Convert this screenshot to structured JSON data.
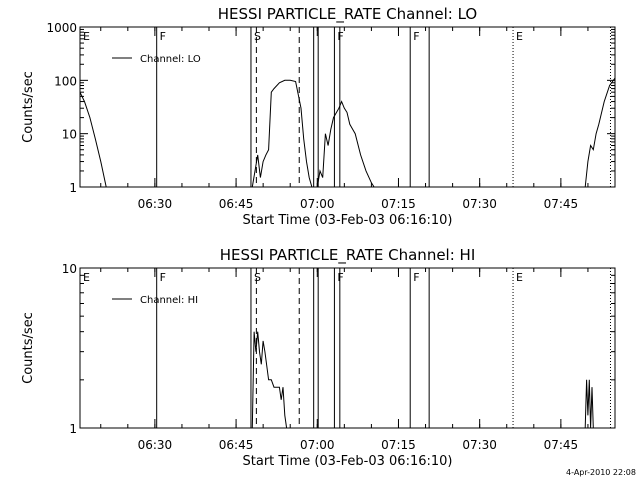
{
  "chart_data": [
    {
      "type": "line",
      "title": "HESSI PARTICLE_RATE Channel: LO",
      "xlabel": "Start Time (03-Feb-03 06:16:10)",
      "ylabel": "Counts/sec",
      "y_scale": "log",
      "ylim": [
        1,
        1000
      ],
      "xlim": [
        "06:16:10",
        "07:55:00"
      ],
      "x_tick_labels": [
        "06:30",
        "06:45",
        "07:00",
        "07:15",
        "07:30",
        "07:45"
      ],
      "y_tick_labels": [
        "1",
        "10",
        "100",
        "1000"
      ],
      "legend": {
        "placement": "top-left",
        "entries": [
          "Channel: LO"
        ]
      },
      "series": [
        {
          "name": "Channel: LO",
          "x": [
            "06:16:10",
            "06:17:00",
            "06:18:00",
            "06:19:00",
            "06:20:00",
            "06:21:00",
            "06:48:00",
            "06:48:30",
            "06:49:00",
            "06:49:30",
            "06:50:00",
            "06:50:30",
            "06:51:00",
            "06:51:30",
            "06:52:00",
            "06:53:00",
            "06:54:00",
            "06:55:00",
            "06:56:00",
            "06:57:00",
            "06:57:30",
            "06:58:00",
            "06:58:30",
            "06:59:00",
            "07:00:00",
            "07:00:30",
            "07:01:00",
            "07:01:30",
            "07:02:00",
            "07:02:30",
            "07:03:00",
            "07:04:00",
            "07:04:30",
            "07:05:00",
            "07:05:30",
            "07:06:00",
            "07:07:00",
            "07:08:00",
            "07:09:00",
            "07:10:00",
            "07:10:30",
            "07:49:30",
            "07:50:00",
            "07:50:30",
            "07:51:00",
            "07:51:30",
            "07:52:00",
            "07:53:00",
            "07:54:00",
            "07:55:00"
          ],
          "y": [
            60,
            40,
            20,
            8,
            3,
            1,
            1,
            2,
            4,
            1.5,
            3,
            4,
            5,
            60,
            70,
            90,
            100,
            100,
            95,
            30,
            8,
            3,
            1.5,
            1,
            1,
            2,
            1.5,
            10,
            6,
            12,
            20,
            30,
            40,
            30,
            25,
            15,
            10,
            4,
            2,
            1.2,
            1,
            1,
            3,
            6,
            5,
            10,
            15,
            40,
            80,
            110
          ]
        }
      ],
      "flags": {
        "label_events": [
          {
            "t": "06:16:10",
            "label": "E",
            "style": "solid"
          },
          {
            "t": "06:30:20",
            "label": "F",
            "style": "solid"
          },
          {
            "t": "06:47:45",
            "label": "S",
            "style": "solid"
          },
          {
            "t": "07:03:10",
            "label": "F",
            "style": "solid"
          },
          {
            "t": "07:17:10",
            "label": "F",
            "style": "solid"
          },
          {
            "t": "07:36:10",
            "label": "E",
            "style": "dotted"
          }
        ],
        "extra_lines": [
          {
            "t": "06:48:45",
            "style": "dashed"
          },
          {
            "t": "06:56:40",
            "style": "dashed"
          },
          {
            "t": "06:59:20",
            "style": "solid"
          },
          {
            "t": "07:00:10",
            "style": "solid"
          },
          {
            "t": "07:04:10",
            "style": "solid"
          },
          {
            "t": "07:20:40",
            "style": "solid"
          },
          {
            "t": "07:54:10",
            "style": "dotted"
          }
        ]
      }
    },
    {
      "type": "line",
      "title": "HESSI PARTICLE_RATE Channel: HI",
      "xlabel": "Start Time (03-Feb-03 06:16:10)",
      "ylabel": "Counts/sec",
      "y_scale": "log",
      "ylim": [
        1,
        10
      ],
      "xlim": [
        "06:16:10",
        "07:55:00"
      ],
      "x_tick_labels": [
        "06:30",
        "06:45",
        "07:00",
        "07:15",
        "07:30",
        "07:45"
      ],
      "y_tick_labels": [
        "1",
        "10"
      ],
      "legend": {
        "placement": "top-left",
        "entries": [
          "Channel: HI"
        ]
      },
      "series": [
        {
          "name": "Channel: HI",
          "x": [
            "06:48:00",
            "06:48:20",
            "06:48:40",
            "06:49:00",
            "06:49:20",
            "06:49:40",
            "06:50:00",
            "06:50:20",
            "06:51:00",
            "06:51:30",
            "06:52:00",
            "06:53:00",
            "06:53:20",
            "06:53:40",
            "06:54:00",
            "06:54:20",
            "07:49:30",
            "07:49:45",
            "07:50:00",
            "07:50:15",
            "07:50:30",
            "07:50:45",
            "07:51:00"
          ],
          "y": [
            1,
            4,
            3,
            4,
            3,
            2.5,
            3.5,
            3,
            2,
            2,
            1.8,
            1.8,
            1.5,
            1.8,
            1.2,
            1,
            1,
            2,
            1.2,
            2,
            1,
            1.8,
            1
          ]
        }
      ],
      "flags": {
        "label_events": [
          {
            "t": "06:16:10",
            "label": "E",
            "style": "solid"
          },
          {
            "t": "06:30:20",
            "label": "F",
            "style": "solid"
          },
          {
            "t": "06:47:45",
            "label": "S",
            "style": "solid"
          },
          {
            "t": "07:03:10",
            "label": "F",
            "style": "solid"
          },
          {
            "t": "07:17:10",
            "label": "F",
            "style": "solid"
          },
          {
            "t": "07:36:10",
            "label": "E",
            "style": "dotted"
          }
        ],
        "extra_lines": [
          {
            "t": "06:48:45",
            "style": "dashed"
          },
          {
            "t": "06:56:40",
            "style": "dashed"
          },
          {
            "t": "06:59:20",
            "style": "solid"
          },
          {
            "t": "07:00:10",
            "style": "solid"
          },
          {
            "t": "07:04:10",
            "style": "solid"
          },
          {
            "t": "07:20:40",
            "style": "solid"
          },
          {
            "t": "07:54:10",
            "style": "dotted"
          }
        ]
      }
    }
  ],
  "footer": {
    "date_stamp": "4-Apr-2010 22:08"
  }
}
